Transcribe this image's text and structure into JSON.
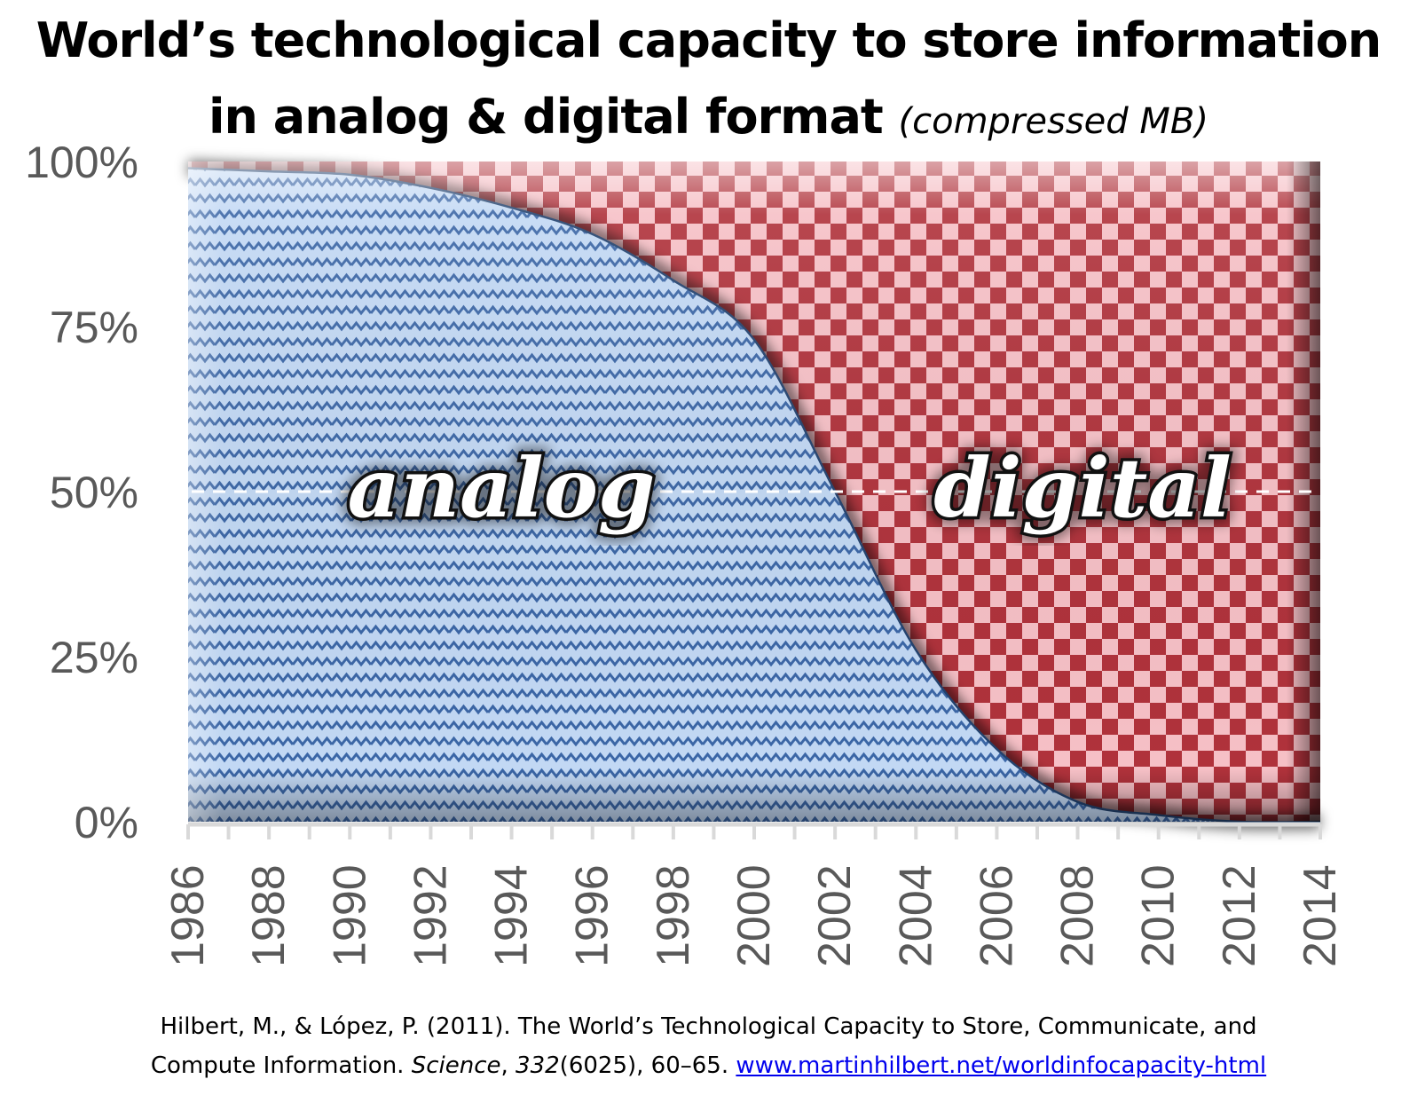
{
  "title": {
    "line1": "World’s technological capacity to store information",
    "line2_main": "in analog & digital format",
    "line2_sub": "(compressed MB)"
  },
  "chart_data": {
    "type": "area",
    "stacked": true,
    "normalized_percent": true,
    "x": [
      1986,
      1988,
      1990,
      1992,
      1994,
      1996,
      1998,
      2000,
      2002,
      2004,
      2006,
      2008,
      2010,
      2012,
      2014
    ],
    "x_tick_labels": [
      "1986",
      "1988",
      "1990",
      "1992",
      "1994",
      "1996",
      "1998",
      "2000",
      "2002",
      "2004",
      "2006",
      "2008",
      "2010",
      "2012",
      "2014"
    ],
    "x_range": [
      1986,
      2014
    ],
    "y_range": [
      0,
      100
    ],
    "y_ticks": [
      0,
      25,
      50,
      75,
      100
    ],
    "y_tick_labels": [
      "0%",
      "25%",
      "50%",
      "75%",
      "100%"
    ],
    "series": [
      {
        "name": "analog",
        "color": "#b9d2f2",
        "pattern": "zigzag",
        "pattern_color": "#3b66a6",
        "values": [
          99,
          98.5,
          98,
          96,
          93,
          89,
          82,
          73,
          50,
          26,
          11,
          3,
          1,
          0,
          0
        ]
      },
      {
        "name": "digital",
        "color": "#f6b8bf",
        "pattern": "checkerboard",
        "pattern_color": "#b0323b",
        "values": [
          1,
          1.5,
          2,
          4,
          7,
          11,
          18,
          27,
          50,
          74,
          89,
          97,
          99,
          100,
          100
        ]
      }
    ],
    "reference_line": {
      "y": 50,
      "style": "dashed",
      "color": "#ffffff"
    },
    "xlabel": "",
    "ylabel": "",
    "grid": false,
    "legend": "none"
  },
  "citation": {
    "line1": "Hilbert, M., & López, P. (2011). The World’s Technological Capacity to Store, Communicate, and",
    "line2_a": "Compute Information. ",
    "journal": "Science",
    "sep1": ", ",
    "volume": "332",
    "line2_b": "(6025), 60–65. ",
    "url_text": "www.martinhilbert.net/worldinfocapacity-html"
  }
}
